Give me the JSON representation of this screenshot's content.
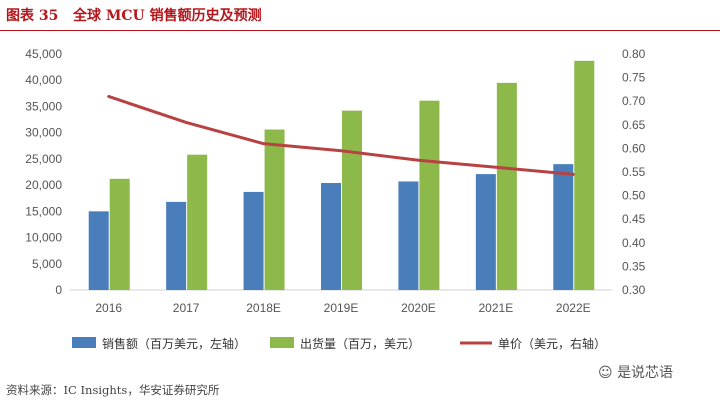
{
  "header": {
    "figure_no": "图表 35",
    "title": "全球 MCU 销售额历史及预测"
  },
  "chart_data": {
    "type": "bar",
    "categories": [
      "2016",
      "2017",
      "2018E",
      "2019E",
      "2020E",
      "2021E",
      "2022E"
    ],
    "series": [
      {
        "name": "销售额（百万美元，左轴）",
        "kind": "bar",
        "axis": "left",
        "color": "#4a7ebb",
        "values": [
          15000,
          16800,
          18700,
          20400,
          20700,
          22100,
          24000
        ]
      },
      {
        "name": "出货量（百万，美元）",
        "kind": "bar",
        "axis": "left",
        "color": "#8db84a",
        "values": [
          21200,
          25800,
          30600,
          34200,
          36100,
          39500,
          43700
        ]
      },
      {
        "name": "单价（美元，右轴）",
        "kind": "line",
        "axis": "right",
        "color": "#b84242",
        "values": [
          0.71,
          0.655,
          0.61,
          0.595,
          0.575,
          0.56,
          0.545
        ]
      }
    ],
    "y_left": {
      "min": 0,
      "max": 45000,
      "step": 5000,
      "ticks": [
        "0",
        "5,000",
        "10,000",
        "15,000",
        "20,000",
        "25,000",
        "30,000",
        "35,000",
        "40,000",
        "45,000"
      ]
    },
    "y_right": {
      "min": 0.3,
      "max": 0.8,
      "step": 0.05,
      "ticks": [
        "0.30",
        "0.35",
        "0.40",
        "0.45",
        "0.50",
        "0.55",
        "0.60",
        "0.65",
        "0.70",
        "0.75",
        "0.80"
      ]
    },
    "grid": false,
    "legend_position": "bottom"
  },
  "footer": {
    "source": "资料来源：IC Insights，华安证券研究所",
    "watermark": "是说芯语"
  }
}
